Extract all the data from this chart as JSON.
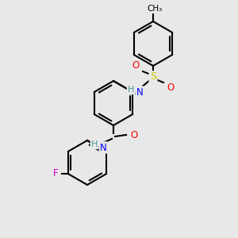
{
  "bg_color": "#e8e8e8",
  "bond_color": "#000000",
  "bond_lw": 1.5,
  "ring_lw": 1.5,
  "atom_colors": {
    "N": "#0000FF",
    "O": "#FF0000",
    "F": "#CC00CC",
    "S": "#CCCC00",
    "H": "#4A9A9A",
    "C": "#000000"
  },
  "font_size": 8.5
}
